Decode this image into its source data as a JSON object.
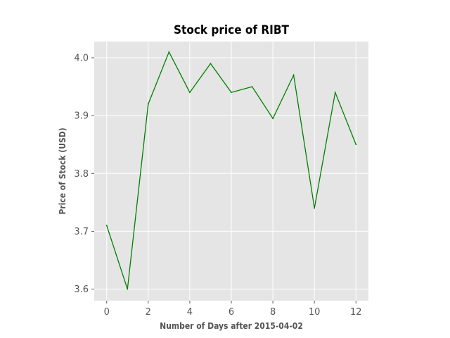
{
  "chart_data": {
    "type": "line",
    "title": "Stock price of RIBT",
    "xlabel": "Number of Days after 2015-04-02",
    "ylabel": "Price of Stock (USD)",
    "x": [
      0,
      1,
      2,
      3,
      4,
      5,
      6,
      7,
      8,
      9,
      10,
      11,
      12
    ],
    "series": [
      {
        "values": [
          3.71,
          3.6,
          3.92,
          4.01,
          3.94,
          3.99,
          3.94,
          3.95,
          3.895,
          3.97,
          3.74,
          3.94,
          3.85
        ],
        "color": "#008000"
      }
    ],
    "xlim": [
      -0.6,
      12.6
    ],
    "ylim": [
      3.58,
      4.028
    ],
    "xticks": [
      0,
      2,
      4,
      6,
      8,
      10,
      12
    ],
    "xtick_labels": [
      "0",
      "2",
      "4",
      "6",
      "8",
      "10",
      "12"
    ],
    "yticks": [
      3.6,
      3.7,
      3.8,
      3.9,
      4.0
    ],
    "ytick_labels": [
      "3.6",
      "3.7",
      "3.8",
      "3.9",
      "4.0"
    ],
    "grid": true,
    "style": "ggplot",
    "background_color": "#e5e5e5",
    "grid_color": "#ffffff"
  }
}
